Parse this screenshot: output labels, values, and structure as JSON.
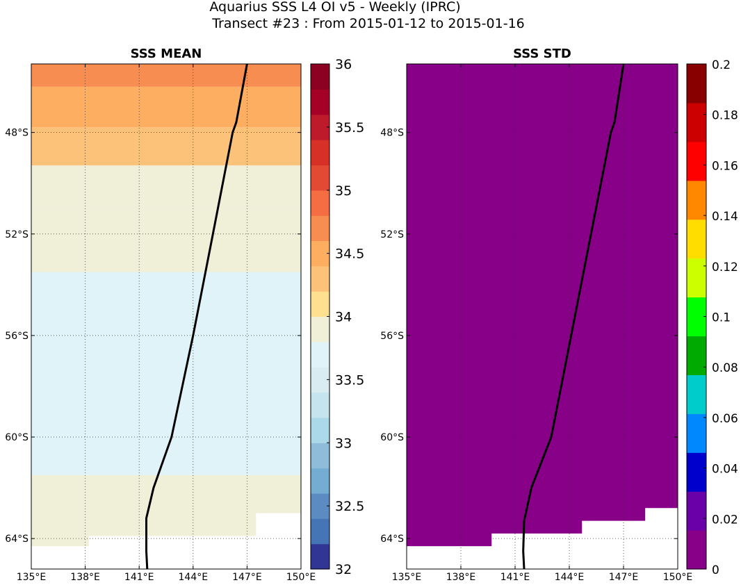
{
  "figure": {
    "title_line1": "Aquarius SSS L4 OI v5 - Weekly (IPRC)",
    "title_line2": "Transect #23 : From 2015-01-12 to 2015-01-16"
  },
  "chart_data": [
    {
      "type": "heatmap",
      "title": "SSS MEAN",
      "xlim": [
        135,
        150
      ],
      "ylim": [
        -65.2,
        -45.3
      ],
      "x_ticks": [
        135,
        138,
        141,
        144,
        147,
        150
      ],
      "x_tick_labels": [
        "135°E",
        "138°E",
        "141°E",
        "144°E",
        "147°E",
        "150°E"
      ],
      "y_ticks": [
        -48,
        -52,
        -56,
        -60,
        -64
      ],
      "y_tick_labels": [
        "48°S",
        "52°S",
        "56°S",
        "60°S",
        "64°S"
      ],
      "grid": true,
      "colormap": "RdYlBu_r",
      "colorbar": {
        "range": [
          32,
          36
        ],
        "ticks": [
          32,
          32.5,
          33,
          33.5,
          34,
          34.5,
          35,
          35.5,
          36
        ],
        "tick_labels": [
          "32",
          "32.5",
          "33",
          "33.5",
          "34",
          "34.5",
          "35",
          "35.5",
          "36"
        ],
        "colors": [
          "#313695",
          "#4575b4",
          "#5b8bc0",
          "#74add1",
          "#8fbcd9",
          "#abd9e9",
          "#c6e4ee",
          "#d8ecf2",
          "#e0f3f8",
          "#f0efd8",
          "#fee090",
          "#fdc27a",
          "#fdae61",
          "#f88d52",
          "#f46d43",
          "#e34a33",
          "#d73027",
          "#bd1a2c",
          "#a50026",
          "#8c0022"
        ]
      },
      "field_rows": [
        {
          "lat_from": -45.3,
          "lat_to": -46.2,
          "value": 34.75
        },
        {
          "lat_from": -46.2,
          "lat_to": -47.8,
          "value": 34.45
        },
        {
          "lat_from": -47.8,
          "lat_to": -49.3,
          "value": 34.2
        },
        {
          "lat_from": -49.3,
          "lat_to": -51.0,
          "value": 33.95
        },
        {
          "lat_from": -51.0,
          "lat_to": -53.5,
          "value": 33.85
        },
        {
          "lat_from": -53.5,
          "lat_to": -58.0,
          "value": 33.6
        },
        {
          "lat_from": -58.0,
          "lat_to": -61.5,
          "value": 33.8
        },
        {
          "lat_from": -61.5,
          "lat_to": -63.5,
          "value": 33.9
        },
        {
          "lat_from": -63.5,
          "lat_to": -65.2,
          "value": 33.85
        }
      ],
      "missing_regions": [
        [
          [
            135,
            -64.3
          ],
          [
            138.2,
            -64.3
          ],
          [
            138.2,
            -63.9
          ],
          [
            147.5,
            -63.9
          ],
          [
            147.5,
            -63.0
          ],
          [
            150,
            -63.0
          ],
          [
            150,
            -65.2
          ],
          [
            135,
            -65.2
          ]
        ]
      ],
      "transect": {
        "lon": [
          147.0,
          146.4,
          146.2,
          145.1,
          144.0,
          142.8,
          141.8,
          141.4,
          141.4,
          141.45
        ],
        "lat": [
          -45.3,
          -47.6,
          -48.0,
          -52.0,
          -56.0,
          -60.0,
          -62.0,
          -63.2,
          -64.5,
          -65.2
        ]
      }
    },
    {
      "type": "heatmap",
      "title": "SSS STD",
      "xlim": [
        135,
        150
      ],
      "ylim": [
        -65.2,
        -45.3
      ],
      "x_ticks": [
        135,
        138,
        141,
        144,
        147,
        150
      ],
      "x_tick_labels": [
        "135°E",
        "138°E",
        "141°E",
        "144°E",
        "147°E",
        "150°E"
      ],
      "y_ticks": [
        -48,
        -52,
        -56,
        -60,
        -64
      ],
      "y_tick_labels": [
        "48°S",
        "52°S",
        "56°S",
        "60°S",
        "64°S"
      ],
      "grid": true,
      "colormap": "spectral",
      "colorbar": {
        "range": [
          0,
          0.2
        ],
        "ticks": [
          0,
          0.02,
          0.04,
          0.06,
          0.08,
          0.1,
          0.12,
          0.14,
          0.16,
          0.18,
          0.2
        ],
        "tick_labels": [
          "0",
          "0.02",
          "0.04",
          "0.06",
          "0.08",
          "0.1",
          "0.12",
          "0.14",
          "0.16",
          "0.18",
          "0.2"
        ],
        "colors": [
          "#880088",
          "#6a00a8",
          "#0000cc",
          "#0088ff",
          "#00cccc",
          "#00aa00",
          "#00ff00",
          "#ccff00",
          "#ffdd00",
          "#ff8800",
          "#ff0000",
          "#cc0000",
          "#880000"
        ]
      },
      "field_value": 0,
      "missing_regions": [
        [
          [
            135,
            -64.3
          ],
          [
            139.7,
            -64.3
          ],
          [
            139.7,
            -63.8
          ],
          [
            144.7,
            -63.8
          ],
          [
            144.7,
            -63.3
          ],
          [
            148.2,
            -63.3
          ],
          [
            148.2,
            -62.8
          ],
          [
            150,
            -62.8
          ],
          [
            150,
            -65.2
          ],
          [
            135,
            -65.2
          ]
        ]
      ],
      "transect": {
        "lon": [
          147.0,
          146.5,
          146.3,
          145.2,
          144.1,
          143.0,
          141.9,
          141.5,
          141.45,
          141.5
        ],
        "lat": [
          -45.3,
          -47.6,
          -48.0,
          -52.0,
          -56.0,
          -60.0,
          -62.0,
          -63.3,
          -64.5,
          -65.2
        ]
      }
    }
  ]
}
